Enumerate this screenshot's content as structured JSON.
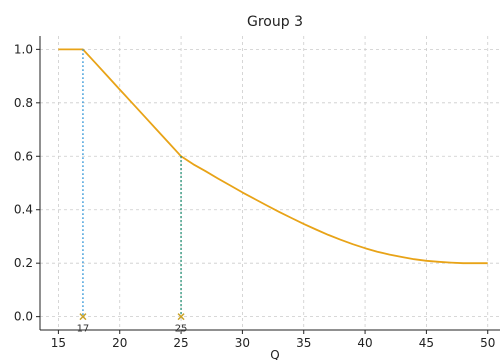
{
  "chart_data": {
    "type": "line",
    "title": "Group 3",
    "xlabel": "Q",
    "ylabel": "",
    "xlim": [
      13.5,
      51
    ],
    "ylim": [
      -0.05,
      1.05
    ],
    "xticks": [
      15,
      20,
      25,
      30,
      35,
      40,
      45,
      50
    ],
    "yticks": [
      0.0,
      0.2,
      0.4,
      0.6,
      0.8,
      1.0
    ],
    "ytick_labels": [
      "0.0",
      "0.2",
      "0.4",
      "0.6",
      "0.8",
      "1.0"
    ],
    "grid": true,
    "series": [
      {
        "color": "#e8a317",
        "x": [
          15,
          17,
          18,
          19,
          20,
          21,
          22,
          23,
          24,
          25,
          26,
          27,
          28,
          29,
          30,
          31,
          32,
          33,
          34,
          35,
          36,
          37,
          38,
          39,
          40,
          41,
          42,
          43,
          44,
          45,
          46,
          47,
          48,
          49,
          50
        ],
        "y": [
          1.0,
          1.0,
          0.95,
          0.9,
          0.85,
          0.8,
          0.75,
          0.7,
          0.65,
          0.6,
          0.57,
          0.544,
          0.517,
          0.491,
          0.465,
          0.44,
          0.416,
          0.392,
          0.369,
          0.347,
          0.326,
          0.306,
          0.288,
          0.271,
          0.256,
          0.243,
          0.232,
          0.223,
          0.215,
          0.209,
          0.205,
          0.202,
          0.2,
          0.2,
          0.2
        ]
      }
    ],
    "markers": [
      {
        "x": 17,
        "y_top": 1.0,
        "label": "17",
        "line_color": "#3a9ad9",
        "marker_color": "#c9a227"
      },
      {
        "x": 25,
        "y_top": 0.6,
        "label": "25",
        "line_color": "#178a6e",
        "marker_color": "#c9a227"
      }
    ]
  }
}
